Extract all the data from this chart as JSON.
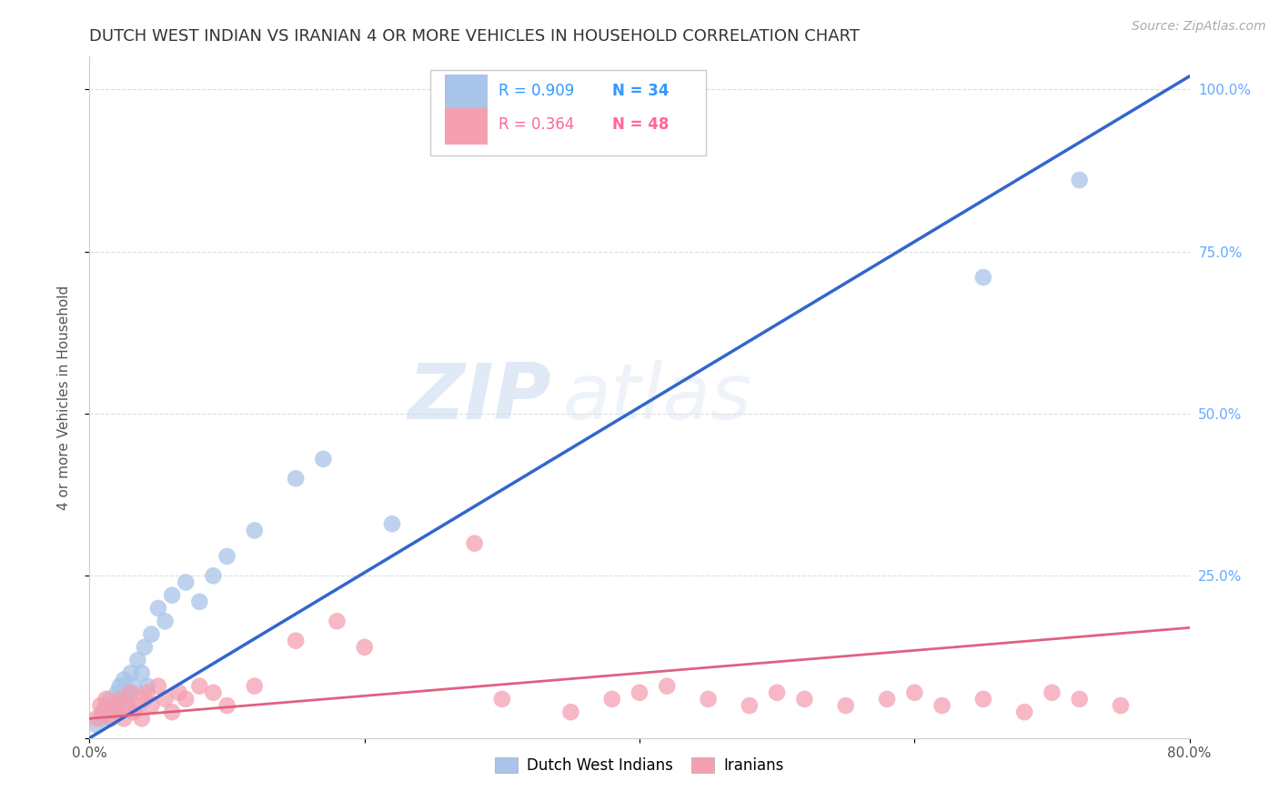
{
  "title": "DUTCH WEST INDIAN VS IRANIAN 4 OR MORE VEHICLES IN HOUSEHOLD CORRELATION CHART",
  "source": "Source: ZipAtlas.com",
  "ylabel": "4 or more Vehicles in Household",
  "watermark_zip": "ZIP",
  "watermark_atlas": "atlas",
  "legend_blue_r": "R = 0.909",
  "legend_blue_n": "N = 34",
  "legend_pink_r": "R = 0.364",
  "legend_pink_n": "N = 48",
  "legend_label_blue": "Dutch West Indians",
  "legend_label_pink": "Iranians",
  "blue_color": "#a8c4e8",
  "pink_color": "#f4a0b0",
  "blue_line_color": "#3366cc",
  "pink_line_color": "#e06080",
  "blue_r_color": "#3399ff",
  "blue_n_color": "#3399ff",
  "pink_r_color": "#ff6699",
  "pink_n_color": "#ff6699",
  "right_tick_color": "#66aaff",
  "xlim": [
    0.0,
    0.8
  ],
  "ylim": [
    0.0,
    1.05
  ],
  "xticks": [
    0.0,
    0.2,
    0.4,
    0.6,
    0.8
  ],
  "xtick_labels": [
    "0.0%",
    "",
    "",
    "",
    "80.0%"
  ],
  "ytick_vals": [
    0.0,
    0.25,
    0.5,
    0.75,
    1.0
  ],
  "ytick_labels": [
    "",
    "25.0%",
    "50.0%",
    "75.0%",
    "100.0%"
  ],
  "blue_scatter_x": [
    0.005,
    0.008,
    0.01,
    0.012,
    0.015,
    0.015,
    0.018,
    0.02,
    0.02,
    0.022,
    0.025,
    0.025,
    0.028,
    0.03,
    0.03,
    0.032,
    0.035,
    0.038,
    0.04,
    0.042,
    0.045,
    0.05,
    0.055,
    0.06,
    0.07,
    0.08,
    0.09,
    0.1,
    0.12,
    0.15,
    0.17,
    0.22,
    0.65,
    0.72
  ],
  "blue_scatter_y": [
    0.02,
    0.03,
    0.04,
    0.05,
    0.06,
    0.03,
    0.05,
    0.07,
    0.04,
    0.08,
    0.06,
    0.09,
    0.05,
    0.07,
    0.1,
    0.08,
    0.12,
    0.1,
    0.14,
    0.08,
    0.16,
    0.2,
    0.18,
    0.22,
    0.24,
    0.21,
    0.25,
    0.28,
    0.32,
    0.4,
    0.43,
    0.33,
    0.71,
    0.86
  ],
  "pink_scatter_x": [
    0.005,
    0.008,
    0.01,
    0.012,
    0.015,
    0.018,
    0.02,
    0.022,
    0.025,
    0.028,
    0.03,
    0.032,
    0.035,
    0.038,
    0.04,
    0.042,
    0.045,
    0.05,
    0.055,
    0.06,
    0.065,
    0.07,
    0.08,
    0.09,
    0.1,
    0.12,
    0.15,
    0.18,
    0.2,
    0.28,
    0.3,
    0.35,
    0.38,
    0.4,
    0.42,
    0.45,
    0.48,
    0.5,
    0.52,
    0.55,
    0.58,
    0.6,
    0.62,
    0.65,
    0.68,
    0.7,
    0.72,
    0.75
  ],
  "pink_scatter_y": [
    0.03,
    0.05,
    0.04,
    0.06,
    0.03,
    0.05,
    0.04,
    0.06,
    0.03,
    0.05,
    0.07,
    0.04,
    0.05,
    0.03,
    0.06,
    0.07,
    0.05,
    0.08,
    0.06,
    0.04,
    0.07,
    0.06,
    0.08,
    0.07,
    0.05,
    0.08,
    0.15,
    0.18,
    0.14,
    0.3,
    0.06,
    0.04,
    0.06,
    0.07,
    0.08,
    0.06,
    0.05,
    0.07,
    0.06,
    0.05,
    0.06,
    0.07,
    0.05,
    0.06,
    0.04,
    0.07,
    0.06,
    0.05
  ],
  "blue_line_x": [
    0.0,
    0.8
  ],
  "blue_line_y": [
    0.0,
    1.02
  ],
  "pink_line_x": [
    0.0,
    0.8
  ],
  "pink_line_y": [
    0.03,
    0.17
  ],
  "grid_color": "#dddddd",
  "background_color": "#ffffff",
  "title_fontsize": 13,
  "axis_label_fontsize": 11,
  "tick_fontsize": 11,
  "source_fontsize": 10
}
